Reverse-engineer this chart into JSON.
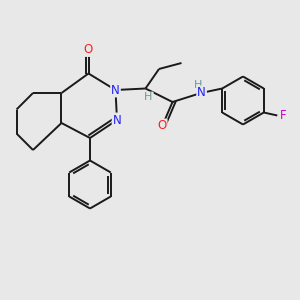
{
  "bg_color": "#e8e8e8",
  "bond_color": "#1a1a1a",
  "bond_width": 1.4,
  "atom_colors": {
    "N": "#2020ff",
    "O": "#ff2020",
    "F": "#cc00cc",
    "H": "#6a9a9a",
    "C": "#1a1a1a"
  },
  "font_size": 8.5
}
